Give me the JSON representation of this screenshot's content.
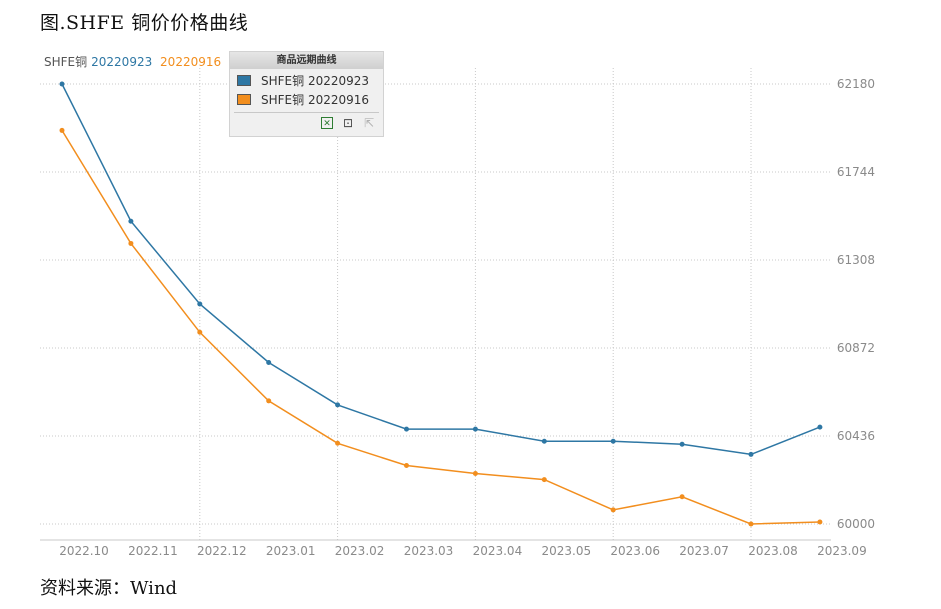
{
  "figure": {
    "title": "图.SHFE 铜价价格曲线",
    "source": "资料来源：Wind"
  },
  "top_legend": {
    "name": "SHFE铜",
    "date1": "20220923",
    "date2": "20220916"
  },
  "popup": {
    "title": "商品远期曲线",
    "items": [
      {
        "label": "SHFE铜 20220923",
        "color": "#2e77a4"
      },
      {
        "label": "SHFE铜 20220916",
        "color": "#f28e1e"
      }
    ],
    "tools": [
      "excel-export-icon",
      "crop-icon",
      "disabled-tool-icon"
    ]
  },
  "colors": {
    "series1": "#2e77a4",
    "series2": "#f28e1e",
    "grid": "#c8c8c8",
    "axis_text": "#8a8a8a"
  },
  "chart_data": {
    "type": "line",
    "x": [
      "2022.10",
      "2022.11",
      "2022.12",
      "2023.01",
      "2023.02",
      "2023.03",
      "2023.04",
      "2023.05",
      "2023.06",
      "2023.07",
      "2023.08",
      "2023.09"
    ],
    "x_tick_labels": [
      "2022.10",
      "2022.11",
      "2022.12",
      "2023.01",
      "2023.02",
      "2023.03",
      "2023.04",
      "2023.05",
      "2023.06",
      "2023.07",
      "2023.08",
      "2023.09"
    ],
    "y_ticks": [
      60000,
      60436,
      60872,
      61308,
      61744,
      62180
    ],
    "ylim": [
      60000,
      62180
    ],
    "y_axis_side": "right",
    "grid": true,
    "legend": "top-left",
    "series": [
      {
        "name": "SHFE铜 20220923",
        "color": "#2e77a4",
        "values": [
          62180,
          61500,
          61090,
          60800,
          60590,
          60470,
          60470,
          60410,
          60410,
          60395,
          60345,
          60480
        ]
      },
      {
        "name": "SHFE铜 20220916",
        "color": "#f28e1e",
        "values": [
          61950,
          61390,
          60950,
          60610,
          60400,
          60290,
          60250,
          60220,
          60070,
          60135,
          60000,
          60010
        ]
      }
    ]
  }
}
